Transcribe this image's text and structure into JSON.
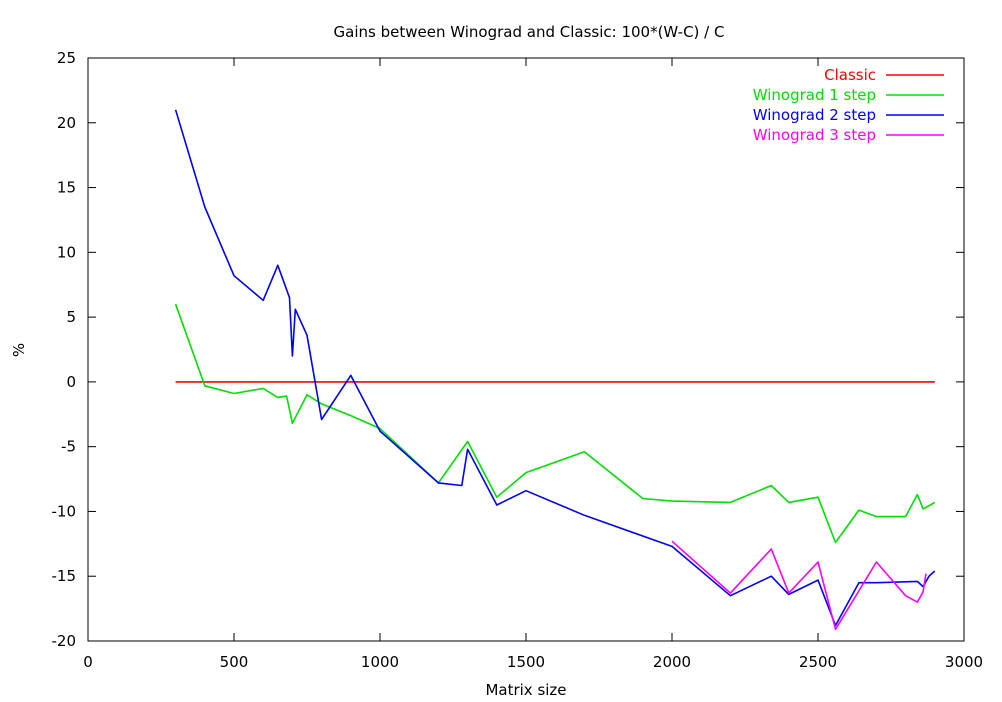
{
  "chart_data": {
    "type": "line",
    "title": "Gains between Winograd and Classic: 100*(W-C) / C",
    "xlabel": "Matrix size",
    "ylabel": "%",
    "xlim": [
      0,
      3000
    ],
    "ylim": [
      -20,
      25
    ],
    "xticks": [
      0,
      500,
      1000,
      1500,
      2000,
      2500,
      3000
    ],
    "yticks": [
      -20,
      -15,
      -10,
      -5,
      0,
      5,
      10,
      15,
      20,
      25
    ],
    "grid": false,
    "legend_position": "top-right",
    "series": [
      {
        "name": "Classic",
        "color": "#ff0000",
        "x": [
          300,
          2900
        ],
        "y": [
          0,
          0
        ]
      },
      {
        "name": "Winograd 1 step",
        "color": "#00e000",
        "x": [
          300,
          400,
          500,
          600,
          650,
          680,
          700,
          750,
          800,
          900,
          1000,
          1200,
          1300,
          1400,
          1500,
          1700,
          1900,
          2000,
          2200,
          2340,
          2400,
          2500,
          2560,
          2640,
          2700,
          2800,
          2840,
          2860,
          2900
        ],
        "y": [
          6,
          -0.3,
          -0.9,
          -0.5,
          -1.2,
          -1.1,
          -3.2,
          -1.0,
          -1.7,
          -2.6,
          -3.6,
          -7.8,
          -4.6,
          -8.9,
          -7.0,
          -5.4,
          -9.0,
          -9.2,
          -9.3,
          -8.0,
          -9.3,
          -8.9,
          -12.4,
          -9.9,
          -10.4,
          -10.4,
          -8.7,
          -9.8,
          -9.3
        ]
      },
      {
        "name": "Winograd 2 step",
        "color": "#0000ff",
        "x": [
          300,
          400,
          500,
          600,
          650,
          690,
          700,
          710,
          750,
          800,
          900,
          1000,
          1200,
          1280,
          1300,
          1400,
          1500,
          1700,
          2000,
          2200,
          2340,
          2400,
          2500,
          2560,
          2640,
          2700,
          2840,
          2860,
          2880,
          2900
        ],
        "y": [
          21,
          13.5,
          8.2,
          6.3,
          9.0,
          6.5,
          2.0,
          5.6,
          3.6,
          -2.9,
          0.5,
          -3.8,
          -7.8,
          -8.0,
          -5.2,
          -9.5,
          -8.4,
          -10.3,
          -12.7,
          -16.5,
          -15.0,
          -16.4,
          -15.3,
          -18.8,
          -15.5,
          -15.5,
          -15.4,
          -15.8,
          -15.0,
          -14.6
        ]
      },
      {
        "name": "Winograd 3 step",
        "color": "#ff00ff",
        "x": [
          2000,
          2200,
          2340,
          2400,
          2500,
          2560,
          2700,
          2800,
          2840,
          2860,
          2870
        ],
        "y": [
          -12.3,
          -16.3,
          -12.9,
          -16.3,
          -13.9,
          -19.1,
          -13.9,
          -16.5,
          -17.0,
          -16.2,
          -14.8
        ]
      }
    ]
  }
}
